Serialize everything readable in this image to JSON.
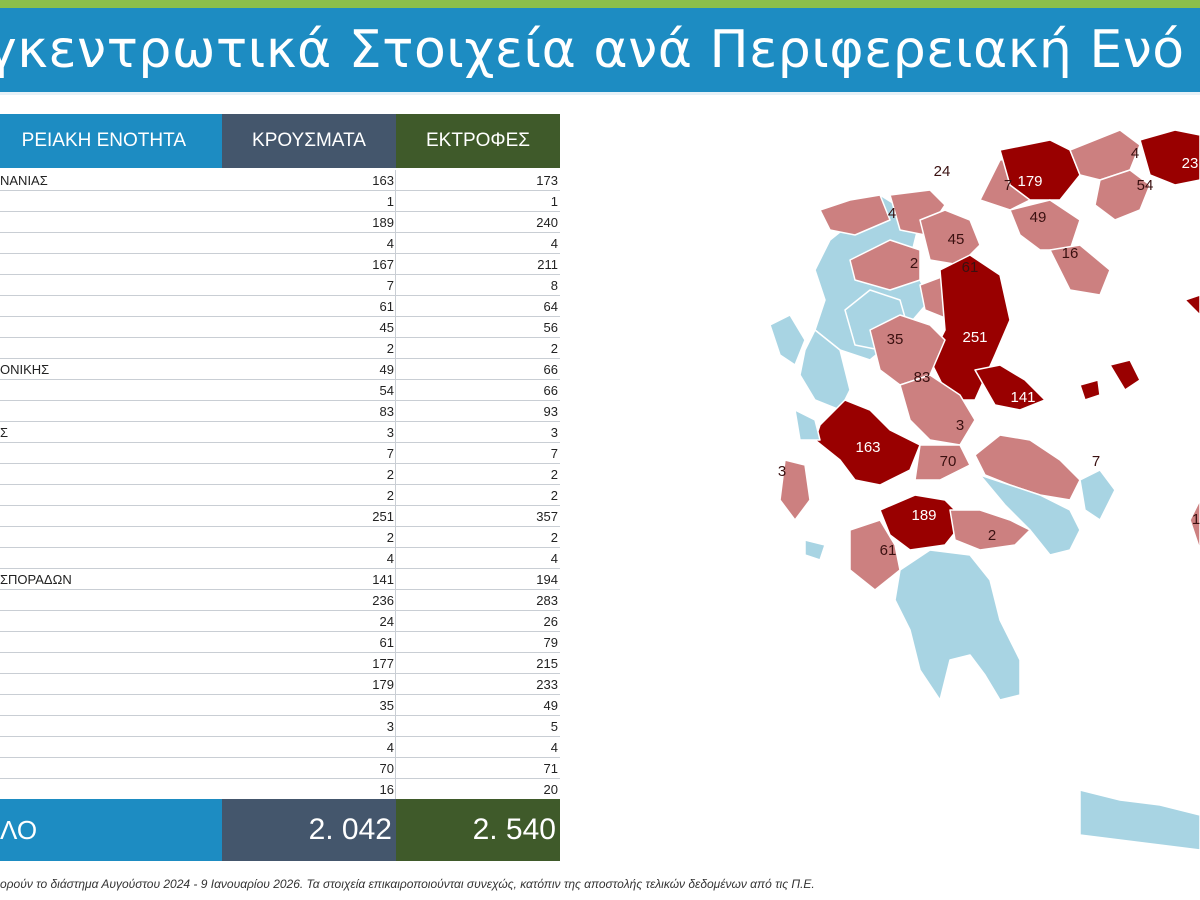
{
  "title": "γκεντρωτικά Στοιχεία ανά Περιφερειακή Ενό",
  "table": {
    "headers": {
      "region": "ΡΕΙΑΚΗ ΕΝΟΤΗΤΑ",
      "cases": "ΚΡΟΥΣΜΑΤΑ",
      "outbreaks": "ΕΚΤΡΟΦΕΣ"
    },
    "rows": [
      {
        "name": "ΝΑΝΙΑΣ",
        "cases": "163",
        "outbreaks": "173"
      },
      {
        "name": "",
        "cases": "1",
        "outbreaks": "1"
      },
      {
        "name": "",
        "cases": "189",
        "outbreaks": "240"
      },
      {
        "name": "",
        "cases": "4",
        "outbreaks": "4"
      },
      {
        "name": "",
        "cases": "167",
        "outbreaks": "211"
      },
      {
        "name": "",
        "cases": "7",
        "outbreaks": "8"
      },
      {
        "name": "",
        "cases": "61",
        "outbreaks": "64"
      },
      {
        "name": "",
        "cases": "45",
        "outbreaks": "56"
      },
      {
        "name": "",
        "cases": "2",
        "outbreaks": "2"
      },
      {
        "name": "ΟΝΙΚΗΣ",
        "cases": "49",
        "outbreaks": "66"
      },
      {
        "name": "",
        "cases": "54",
        "outbreaks": "66"
      },
      {
        "name": "",
        "cases": "83",
        "outbreaks": "93"
      },
      {
        "name": "Σ",
        "cases": "3",
        "outbreaks": "3"
      },
      {
        "name": "",
        "cases": "7",
        "outbreaks": "7"
      },
      {
        "name": "",
        "cases": "2",
        "outbreaks": "2"
      },
      {
        "name": "",
        "cases": "2",
        "outbreaks": "2"
      },
      {
        "name": "",
        "cases": "251",
        "outbreaks": "357"
      },
      {
        "name": "",
        "cases": "2",
        "outbreaks": "2"
      },
      {
        "name": "",
        "cases": "4",
        "outbreaks": "4"
      },
      {
        "name": "ΣΠΟΡΑΔΩΝ",
        "cases": "141",
        "outbreaks": "194"
      },
      {
        "name": "",
        "cases": "236",
        "outbreaks": "283"
      },
      {
        "name": "",
        "cases": "24",
        "outbreaks": "26"
      },
      {
        "name": "",
        "cases": "61",
        "outbreaks": "79"
      },
      {
        "name": "",
        "cases": "177",
        "outbreaks": "215"
      },
      {
        "name": "",
        "cases": "179",
        "outbreaks": "233"
      },
      {
        "name": "",
        "cases": "35",
        "outbreaks": "49"
      },
      {
        "name": "",
        "cases": "3",
        "outbreaks": "5"
      },
      {
        "name": "",
        "cases": "4",
        "outbreaks": "4"
      },
      {
        "name": "",
        "cases": "70",
        "outbreaks": "71"
      },
      {
        "name": "",
        "cases": "16",
        "outbreaks": "20"
      }
    ],
    "total": {
      "label": "ΛΟ",
      "cases": "2. 042",
      "outbreaks": "2. 540"
    }
  },
  "map": {
    "colors": {
      "high": "#990000",
      "medium": "#cc8080",
      "none": "#a8d4e3",
      "border": "#ffffff"
    },
    "labels": [
      "179",
      "4",
      "23",
      "54",
      "24",
      "7",
      "4",
      "49",
      "45",
      "2",
      "61",
      "16",
      "35",
      "251",
      "83",
      "141",
      "163",
      "3",
      "3",
      "70",
      "7",
      "189",
      "2",
      "61",
      "1"
    ]
  },
  "footnote": "ορούν το διάστημα Αυγούστου 2024 - 9 Ιανουαρίου 2026. Τα στοιχεία επικαιροποιούνται συνεχώς, κατόπιν της αποστολής τελικών δεδομένων από τις Π.Ε."
}
